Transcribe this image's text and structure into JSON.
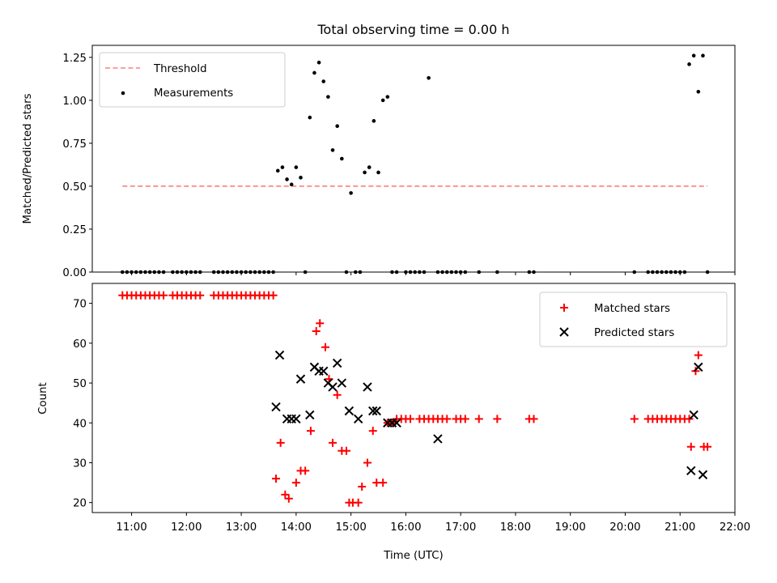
{
  "chart_data": [
    {
      "type": "scatter",
      "title": "Total observing time = 0.00 h",
      "xlabel": "",
      "ylabel": "Matched/Predicted stars",
      "ylim": [
        0,
        1.32
      ],
      "xlim": [
        "10:17",
        "22:00"
      ],
      "yticks": [
        "0.00",
        "0.25",
        "0.50",
        "0.75",
        "1.00",
        "1.25"
      ],
      "legend": {
        "placement": "top-left",
        "entries": [
          "Threshold",
          "Measurements"
        ]
      },
      "threshold": {
        "name": "Threshold",
        "value": 0.5,
        "x_start": "10:50",
        "x_end": "21:30",
        "color": "#ff7f7f"
      },
      "series": [
        {
          "name": "Measurements",
          "color": "#000000",
          "x": [
            "10:50",
            "10:55",
            "11:00",
            "11:05",
            "11:10",
            "11:15",
            "11:20",
            "11:25",
            "11:30",
            "11:35",
            "11:45",
            "11:50",
            "11:55",
            "12:00",
            "12:05",
            "12:10",
            "12:15",
            "12:30",
            "12:35",
            "12:40",
            "12:45",
            "12:50",
            "12:55",
            "13:00",
            "13:05",
            "13:10",
            "13:15",
            "13:20",
            "13:25",
            "13:30",
            "13:35",
            "13:40",
            "13:45",
            "13:50",
            "13:55",
            "14:00",
            "14:05",
            "14:10",
            "14:15",
            "14:20",
            "14:25",
            "14:30",
            "14:35",
            "14:40",
            "14:45",
            "14:50",
            "14:55",
            "15:00",
            "15:05",
            "15:10",
            "15:15",
            "15:20",
            "15:25",
            "15:30",
            "15:35",
            "15:40",
            "15:45",
            "15:50",
            "16:00",
            "16:05",
            "16:10",
            "16:15",
            "16:20",
            "16:25",
            "16:35",
            "16:40",
            "16:45",
            "16:50",
            "16:55",
            "17:00",
            "17:05",
            "17:20",
            "17:40",
            "18:15",
            "18:20",
            "20:10",
            "20:25",
            "20:30",
            "20:35",
            "20:40",
            "20:45",
            "20:50",
            "20:55",
            "21:00",
            "21:05",
            "21:10",
            "21:15",
            "21:20",
            "21:25",
            "21:30"
          ],
          "y": [
            0,
            0,
            0,
            0,
            0,
            0,
            0,
            0,
            0,
            0,
            0,
            0,
            0,
            0,
            0,
            0,
            0,
            0,
            0,
            0,
            0,
            0,
            0,
            0,
            0,
            0,
            0,
            0,
            0,
            0,
            0,
            0.59,
            0.61,
            0.54,
            0.51,
            0.61,
            0.55,
            0,
            0.9,
            1.16,
            1.22,
            1.11,
            1.02,
            0.71,
            0.85,
            0.66,
            0,
            0.46,
            0,
            0,
            0.58,
            0.61,
            0.88,
            0.58,
            1.0,
            1.02,
            0,
            0,
            0,
            0,
            0,
            0,
            0,
            1.13,
            0,
            0,
            0,
            0,
            0,
            0,
            0,
            0,
            0,
            0,
            0,
            0,
            0,
            0,
            0,
            0,
            0,
            0,
            0,
            0,
            0,
            1.21,
            1.26,
            1.05,
            1.26,
            0
          ]
        }
      ]
    },
    {
      "type": "scatter",
      "title": "",
      "xlabel": "Time (UTC)",
      "ylabel": "Count",
      "ylim": [
        17.5,
        75
      ],
      "xlim": [
        "10:17",
        "22:00"
      ],
      "yticks": [
        "20",
        "30",
        "40",
        "50",
        "60",
        "70"
      ],
      "xticks": [
        "11:00",
        "12:00",
        "13:00",
        "14:00",
        "15:00",
        "16:00",
        "17:00",
        "18:00",
        "19:00",
        "20:00",
        "21:00",
        "22:00"
      ],
      "legend": {
        "placement": "top-right",
        "entries": [
          "Matched stars",
          "Predicted stars"
        ]
      },
      "series": [
        {
          "name": "Matched stars",
          "marker": "+",
          "color": "#ff0000",
          "x": [
            "10:50",
            "10:55",
            "11:00",
            "11:05",
            "11:10",
            "11:15",
            "11:20",
            "11:25",
            "11:30",
            "11:35",
            "11:45",
            "11:50",
            "11:55",
            "12:00",
            "12:05",
            "12:10",
            "12:15",
            "12:30",
            "12:35",
            "12:40",
            "12:45",
            "12:50",
            "12:55",
            "13:00",
            "13:05",
            "13:10",
            "13:15",
            "13:20",
            "13:25",
            "13:30",
            "13:35",
            "13:38",
            "13:43",
            "13:48",
            "13:52",
            "14:00",
            "14:05",
            "14:10",
            "14:16",
            "14:22",
            "14:26",
            "14:32",
            "14:36",
            "14:40",
            "14:45",
            "14:50",
            "14:55",
            "14:58",
            "15:02",
            "15:08",
            "15:12",
            "15:18",
            "15:24",
            "15:28",
            "15:35",
            "15:40",
            "15:45",
            "15:50",
            "15:55",
            "16:00",
            "16:05",
            "16:15",
            "16:20",
            "16:25",
            "16:30",
            "16:35",
            "16:40",
            "16:45",
            "16:55",
            "17:00",
            "17:05",
            "17:20",
            "17:40",
            "18:15",
            "18:20",
            "20:10",
            "20:25",
            "20:30",
            "20:35",
            "20:40",
            "20:45",
            "20:50",
            "20:55",
            "21:00",
            "21:05",
            "21:10",
            "21:12",
            "21:17",
            "21:20",
            "21:26",
            "21:30"
          ],
          "y": [
            72,
            72,
            72,
            72,
            72,
            72,
            72,
            72,
            72,
            72,
            72,
            72,
            72,
            72,
            72,
            72,
            72,
            72,
            72,
            72,
            72,
            72,
            72,
            72,
            72,
            72,
            72,
            72,
            72,
            72,
            72,
            26,
            35,
            22,
            21,
            25,
            28,
            28,
            38,
            63,
            65,
            59,
            51,
            35,
            47,
            33,
            33,
            20,
            20,
            20,
            24,
            30,
            38,
            25,
            25,
            40,
            40,
            41,
            41,
            41,
            41,
            41,
            41,
            41,
            41,
            41,
            41,
            41,
            41,
            41,
            41,
            41,
            41,
            41,
            41,
            41,
            41,
            41,
            41,
            41,
            41,
            41,
            41,
            41,
            41,
            41,
            34,
            53,
            57,
            34,
            34
          ]
        },
        {
          "name": "Predicted stars",
          "marker": "x",
          "color": "#000000",
          "x": [
            "13:38",
            "13:42",
            "13:50",
            "13:55",
            "14:00",
            "14:05",
            "14:15",
            "14:20",
            "14:25",
            "14:30",
            "14:35",
            "14:40",
            "14:45",
            "14:50",
            "14:58",
            "15:08",
            "15:18",
            "15:24",
            "15:28",
            "15:40",
            "15:45",
            "15:50",
            "16:35",
            "21:12",
            "21:15",
            "21:20",
            "21:25"
          ],
          "y": [
            44,
            57,
            41,
            41,
            41,
            51,
            42,
            54,
            53,
            53,
            50,
            49,
            55,
            50,
            43,
            41,
            49,
            43,
            43,
            40,
            40,
            40,
            36,
            28,
            42,
            54,
            27
          ]
        }
      ]
    }
  ]
}
